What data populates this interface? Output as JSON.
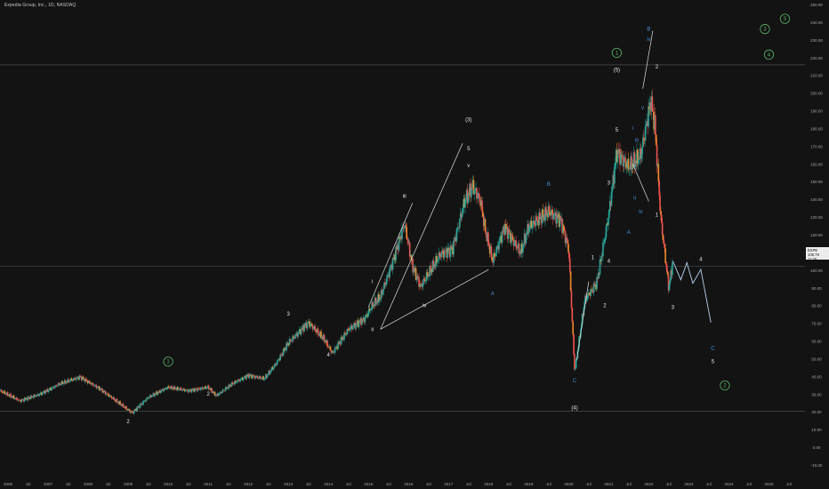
{
  "header": {
    "title": "Expedia Group, Inc., 1D, NASDAQ"
  },
  "price_badge": {
    "symbol": "EXPE",
    "last": "108.79",
    "sub": "11:20"
  },
  "colors": {
    "bg": "#131313",
    "up": "#26a69a",
    "down": "#ef5350",
    "orange": "#f0892c",
    "label_white": "#e8e8e8",
    "label_blue": "#4a90d9",
    "label_green": "#59b36a",
    "forecast": "#b8d2f0",
    "trendline": "#e0e0e0"
  },
  "chart_data": {
    "type": "candlestick",
    "title": "Expedia Group, Inc., 1D, NASDAQ",
    "ylim": [
      -10,
      260
    ],
    "xlim": [
      2005.8,
      2025.9
    ],
    "y_ticks": [
      "250.00",
      "240.00",
      "230.00",
      "220.00",
      "210.00",
      "200.00",
      "190.00",
      "180.00",
      "170.00",
      "160.00",
      "150.00",
      "140.00",
      "130.00",
      "120.00",
      "110.00",
      "100.00",
      "90.00",
      "80.00",
      "70.00",
      "60.00",
      "50.00",
      "40.00",
      "30.00",
      "20.00",
      "10.00",
      "0.00",
      "-10.00"
    ],
    "x_ticks": [
      "2006",
      "Jul",
      "2007",
      "Jul",
      "2008",
      "Jul",
      "2009",
      "Jul",
      "2010",
      "Jul",
      "2011",
      "Jul",
      "2012",
      "Jul",
      "2013",
      "Jul",
      "2014",
      "Jul",
      "2015",
      "Jul",
      "2016",
      "Jul",
      "2017",
      "Jul",
      "2018",
      "Jul",
      "2019",
      "Jul",
      "2020",
      "Jul",
      "2021",
      "Jul",
      "2022",
      "Jul",
      "2023",
      "Jul",
      "2024",
      "Jul",
      "2025",
      "Jul"
    ],
    "price_path": [
      [
        2005.8,
        32
      ],
      [
        2006.3,
        26
      ],
      [
        2006.8,
        30
      ],
      [
        2007.3,
        36
      ],
      [
        2007.8,
        40
      ],
      [
        2008.3,
        33
      ],
      [
        2008.7,
        26
      ],
      [
        2009.1,
        19
      ],
      [
        2009.5,
        28
      ],
      [
        2010.0,
        34
      ],
      [
        2010.5,
        32
      ],
      [
        2011.0,
        34
      ],
      [
        2011.2,
        29
      ],
      [
        2011.6,
        36
      ],
      [
        2012.0,
        41
      ],
      [
        2012.4,
        39
      ],
      [
        2012.7,
        48
      ],
      [
        2013.0,
        60
      ],
      [
        2013.5,
        72
      ],
      [
        2013.9,
        62
      ],
      [
        2014.1,
        54
      ],
      [
        2014.5,
        68
      ],
      [
        2014.9,
        74
      ],
      [
        2015.1,
        82
      ],
      [
        2015.3,
        87
      ],
      [
        2015.6,
        107
      ],
      [
        2015.9,
        130
      ],
      [
        2016.1,
        105
      ],
      [
        2016.3,
        93
      ],
      [
        2016.8,
        112
      ],
      [
        2017.1,
        115
      ],
      [
        2017.4,
        143
      ],
      [
        2017.6,
        152
      ],
      [
        2017.8,
        143
      ],
      [
        2017.9,
        128
      ],
      [
        2018.1,
        108
      ],
      [
        2018.4,
        128
      ],
      [
        2018.8,
        113
      ],
      [
        2019.0,
        128
      ],
      [
        2019.5,
        137
      ],
      [
        2019.8,
        132
      ],
      [
        2020.0,
        115
      ],
      [
        2020.15,
        43
      ],
      [
        2020.4,
        85
      ],
      [
        2020.7,
        95
      ],
      [
        2021.0,
        135
      ],
      [
        2021.2,
        172
      ],
      [
        2021.5,
        163
      ],
      [
        2021.8,
        170
      ],
      [
        2022.05,
        202
      ],
      [
        2022.15,
        188
      ],
      [
        2022.3,
        133
      ],
      [
        2022.5,
        92
      ],
      [
        2022.6,
        108
      ]
    ],
    "forecast_path": [
      [
        2022.6,
        108
      ],
      [
        2022.8,
        97
      ],
      [
        2022.95,
        107
      ],
      [
        2023.1,
        95
      ],
      [
        2023.3,
        103
      ],
      [
        2023.55,
        72
      ]
    ],
    "horizontal_levels": [
      223,
      105,
      20
    ],
    "wave_labels": [
      {
        "t": "2",
        "x": 2009.0,
        "y": 13,
        "c": "white"
      },
      {
        "t": "1",
        "x": 2010.0,
        "y": 48,
        "c": "green"
      },
      {
        "t": "2",
        "x": 2011.0,
        "y": 29,
        "c": "white"
      },
      {
        "t": "3",
        "x": 2013.0,
        "y": 76,
        "c": "white"
      },
      {
        "t": "4",
        "x": 2014.0,
        "y": 52,
        "c": "white"
      },
      {
        "t": "i",
        "x": 2015.1,
        "y": 95,
        "c": "white"
      },
      {
        "t": "ii",
        "x": 2015.1,
        "y": 67,
        "c": "white"
      },
      {
        "t": "iii",
        "x": 2015.9,
        "y": 145,
        "c": "white"
      },
      {
        "t": "iv",
        "x": 2016.4,
        "y": 81,
        "c": "white"
      },
      {
        "t": "(3)",
        "x": 2017.5,
        "y": 190,
        "c": "white"
      },
      {
        "t": "5",
        "x": 2017.5,
        "y": 173,
        "c": "white"
      },
      {
        "t": "v",
        "x": 2017.5,
        "y": 163,
        "c": "white"
      },
      {
        "t": "A",
        "x": 2018.1,
        "y": 88,
        "c": "blue"
      },
      {
        "t": "B",
        "x": 2019.5,
        "y": 152,
        "c": "blue"
      },
      {
        "t": "C",
        "x": 2020.15,
        "y": 37,
        "c": "blue"
      },
      {
        "t": "(4)",
        "x": 2020.15,
        "y": 21,
        "c": "white"
      },
      {
        "t": "1",
        "x": 2020.6,
        "y": 109,
        "c": "white"
      },
      {
        "t": "2",
        "x": 2020.9,
        "y": 81,
        "c": "white"
      },
      {
        "t": "3",
        "x": 2021.0,
        "y": 153,
        "c": "white"
      },
      {
        "t": "4",
        "x": 2021.0,
        "y": 107,
        "c": "white"
      },
      {
        "t": "5",
        "x": 2021.2,
        "y": 184,
        "c": "white"
      },
      {
        "t": "(5)",
        "x": 2021.2,
        "y": 219,
        "c": "white"
      },
      {
        "t": "1",
        "x": 2021.2,
        "y": 229,
        "c": "green"
      },
      {
        "t": "A",
        "x": 2021.5,
        "y": 124,
        "c": "blue"
      },
      {
        "t": "i",
        "x": 2021.6,
        "y": 185,
        "c": "blue"
      },
      {
        "t": "ii",
        "x": 2021.65,
        "y": 144,
        "c": "blue"
      },
      {
        "t": "iii",
        "x": 2021.7,
        "y": 178,
        "c": "blue"
      },
      {
        "t": "iv",
        "x": 2021.8,
        "y": 136,
        "c": "blue"
      },
      {
        "t": "v",
        "x": 2021.85,
        "y": 197,
        "c": "blue"
      },
      {
        "t": "B",
        "x": 2022.0,
        "y": 243,
        "c": "blue"
      },
      {
        "t": "iv",
        "x": 2022.0,
        "y": 237,
        "c": "blue"
      },
      {
        "t": "2",
        "x": 2022.2,
        "y": 221,
        "c": "white"
      },
      {
        "t": "1",
        "x": 2022.2,
        "y": 134,
        "c": "white"
      },
      {
        "t": "3",
        "x": 2022.6,
        "y": 80,
        "c": "white"
      },
      {
        "t": "4",
        "x": 2023.3,
        "y": 108,
        "c": "white"
      },
      {
        "t": "C",
        "x": 2023.6,
        "y": 56,
        "c": "blue"
      },
      {
        "t": "5",
        "x": 2023.6,
        "y": 48,
        "c": "white"
      },
      {
        "t": "2",
        "x": 2023.9,
        "y": 34,
        "c": "green"
      },
      {
        "t": "3",
        "x": 2024.9,
        "y": 243,
        "c": "green"
      },
      {
        "t": "4",
        "x": 2025.0,
        "y": 228,
        "c": "green"
      },
      {
        "t": "5",
        "x": 2025.4,
        "y": 249,
        "c": "green"
      }
    ],
    "trend_lines": [
      [
        [
          2015.3,
          68
        ],
        [
          2017.35,
          177
        ]
      ],
      [
        [
          2015.3,
          68
        ],
        [
          2018.0,
          103
        ]
      ],
      [
        [
          2015.0,
          81
        ],
        [
          2016.1,
          142
        ]
      ],
      [
        [
          2020.2,
          50
        ],
        [
          2020.5,
          96
        ]
      ],
      [
        [
          2021.85,
          209
        ],
        [
          2022.1,
          243
        ]
      ],
      [
        [
          2021.6,
          165
        ],
        [
          2022.0,
          143
        ]
      ]
    ]
  }
}
